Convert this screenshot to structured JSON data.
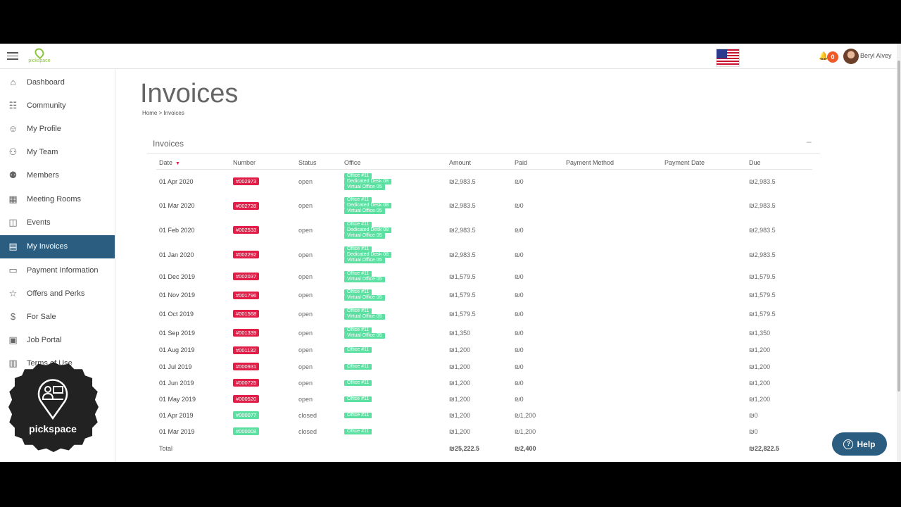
{
  "header": {
    "logo_text": "pickspace",
    "notifications_count": "0",
    "user_name": "Beryl Alvey"
  },
  "sidebar": {
    "items": [
      {
        "label": "Dashboard",
        "icon": "home-icon"
      },
      {
        "label": "Community",
        "icon": "community-icon"
      },
      {
        "label": "My Profile",
        "icon": "user-icon"
      },
      {
        "label": "My Team",
        "icon": "team-icon"
      },
      {
        "label": "Members",
        "icon": "members-icon"
      },
      {
        "label": "Meeting Rooms",
        "icon": "calendar-icon"
      },
      {
        "label": "Events",
        "icon": "event-icon"
      },
      {
        "label": "My Invoices",
        "icon": "invoice-icon",
        "active": true
      },
      {
        "label": "Payment Information",
        "icon": "card-icon"
      },
      {
        "label": "Offers and Perks",
        "icon": "star-icon"
      },
      {
        "label": "For Sale",
        "icon": "dollar-icon"
      },
      {
        "label": "Job Portal",
        "icon": "briefcase-icon"
      },
      {
        "label": "Terms of Use",
        "icon": "document-icon"
      }
    ]
  },
  "badge_text": "pickspace",
  "page": {
    "title": "Invoices",
    "breadcrumb_home": "Home",
    "breadcrumb_sep": ">",
    "breadcrumb_current": "Invoices",
    "panel_title": "Invoices",
    "collapse": "–"
  },
  "table": {
    "headers": {
      "date": "Date",
      "number": "Number",
      "status": "Status",
      "office": "Office",
      "amount": "Amount",
      "paid": "Paid",
      "payment_method": "Payment Method",
      "payment_date": "Payment Date",
      "due": "Due"
    },
    "rows": [
      {
        "date": "01 Apr 2020",
        "number": "#002973",
        "status": "open",
        "offices": [
          "Office #11",
          "Dedicated Desk 08",
          "Virtual Office 05"
        ],
        "amount": "₪2,983.5",
        "paid": "₪0",
        "method": "",
        "pdate": "",
        "due": "₪2,983.5"
      },
      {
        "date": "01 Mar 2020",
        "number": "#002728",
        "status": "open",
        "offices": [
          "Office #11",
          "Dedicated Desk 08",
          "Virtual Office 05"
        ],
        "amount": "₪2,983.5",
        "paid": "₪0",
        "method": "",
        "pdate": "",
        "due": "₪2,983.5"
      },
      {
        "date": "01 Feb 2020",
        "number": "#002533",
        "status": "open",
        "offices": [
          "Office #11",
          "Dedicated Desk 08",
          "Virtual Office 05"
        ],
        "amount": "₪2,983.5",
        "paid": "₪0",
        "method": "",
        "pdate": "",
        "due": "₪2,983.5"
      },
      {
        "date": "01 Jan 2020",
        "number": "#002292",
        "status": "open",
        "offices": [
          "Office #11",
          "Dedicated Desk 08",
          "Virtual Office 05"
        ],
        "amount": "₪2,983.5",
        "paid": "₪0",
        "method": "",
        "pdate": "",
        "due": "₪2,983.5"
      },
      {
        "date": "01 Dec 2019",
        "number": "#002037",
        "status": "open",
        "offices": [
          "Office #11",
          "Virtual Office 05"
        ],
        "amount": "₪1,579.5",
        "paid": "₪0",
        "method": "",
        "pdate": "",
        "due": "₪1,579.5"
      },
      {
        "date": "01 Nov 2019",
        "number": "#001796",
        "status": "open",
        "offices": [
          "Office #11",
          "Virtual Office 05"
        ],
        "amount": "₪1,579.5",
        "paid": "₪0",
        "method": "",
        "pdate": "",
        "due": "₪1,579.5"
      },
      {
        "date": "01 Oct 2019",
        "number": "#001568",
        "status": "open",
        "offices": [
          "Office #11",
          "Virtual Office 05"
        ],
        "amount": "₪1,579.5",
        "paid": "₪0",
        "method": "",
        "pdate": "",
        "due": "₪1,579.5"
      },
      {
        "date": "01 Sep 2019",
        "number": "#001339",
        "status": "open",
        "offices": [
          "Office #11",
          "Virtual Office 05"
        ],
        "amount": "₪1,350",
        "paid": "₪0",
        "method": "",
        "pdate": "",
        "due": "₪1,350"
      },
      {
        "date": "01 Aug 2019",
        "number": "#001132",
        "status": "open",
        "offices": [
          "Office #11"
        ],
        "amount": "₪1,200",
        "paid": "₪0",
        "method": "",
        "pdate": "",
        "due": "₪1,200"
      },
      {
        "date": "01 Jul 2019",
        "number": "#000931",
        "status": "open",
        "offices": [
          "Office #11"
        ],
        "amount": "₪1,200",
        "paid": "₪0",
        "method": "",
        "pdate": "",
        "due": "₪1,200"
      },
      {
        "date": "01 Jun 2019",
        "number": "#000725",
        "status": "open",
        "offices": [
          "Office #11"
        ],
        "amount": "₪1,200",
        "paid": "₪0",
        "method": "",
        "pdate": "",
        "due": "₪1,200"
      },
      {
        "date": "01 May 2019",
        "number": "#000520",
        "status": "open",
        "offices": [
          "Office #11"
        ],
        "amount": "₪1,200",
        "paid": "₪0",
        "method": "",
        "pdate": "",
        "due": "₪1,200"
      },
      {
        "date": "01 Apr 2019",
        "number": "#000077",
        "status": "closed",
        "offices": [
          "Office #11"
        ],
        "amount": "₪1,200",
        "paid": "₪1,200",
        "method": "",
        "pdate": "",
        "due": "₪0"
      },
      {
        "date": "01 Mar 2019",
        "number": "#000008",
        "status": "closed",
        "offices": [
          "Office #11"
        ],
        "amount": "₪1,200",
        "paid": "₪1,200",
        "method": "",
        "pdate": "",
        "due": "₪0"
      }
    ],
    "total": {
      "label": "Total",
      "amount": "₪25,222.5",
      "paid": "₪2,400",
      "due": "₪22,822.5"
    }
  },
  "help_label": "Help",
  "colors": {
    "accent": "#2a5d7f",
    "open_badge": "#e11d48",
    "closed_badge": "#5ce0a2",
    "brand_green": "#8cc63f"
  }
}
